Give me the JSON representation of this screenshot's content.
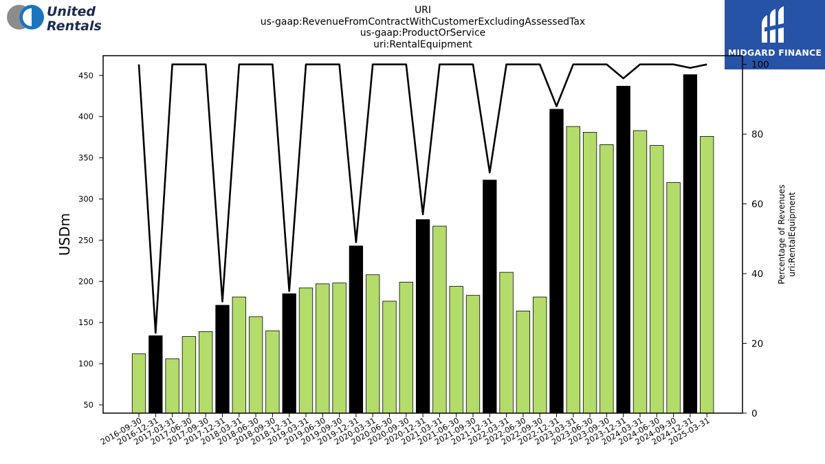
{
  "header": {
    "logo_left_line1": "United",
    "logo_left_line2": "Rentals",
    "logo_right_text": "MIDGARD FINANCE",
    "title_lines": [
      "URI",
      "us-gaap:RevenueFromContractWithCustomerExcludingAssessedTax",
      "us-gaap:ProductOrService",
      "uri:RentalEquipment"
    ]
  },
  "colors": {
    "bar_q4": "#000000",
    "bar_other": "#b3dc6b",
    "line": "#000000",
    "logo_blue": "#2653a6",
    "united_blue": "#1b75bc",
    "united_gray": "#8c8c8c",
    "united_navy": "#1c2a4f"
  },
  "chart_data": {
    "type": "bar",
    "categories": [
      "2016-09-30",
      "2016-12-31",
      "2017-03-31",
      "2017-06-30",
      "2017-09-30",
      "2017-12-31",
      "2018-03-31",
      "2018-06-30",
      "2018-09-30",
      "2018-12-31",
      "2019-03-31",
      "2019-06-30",
      "2019-09-30",
      "2019-12-31",
      "2020-03-31",
      "2020-06-30",
      "2020-09-30",
      "2020-12-31",
      "2021-03-31",
      "2021-06-30",
      "2021-09-30",
      "2021-12-31",
      "2022-03-31",
      "2022-06-30",
      "2022-09-30",
      "2022-12-31",
      "2023-03-31",
      "2023-06-30",
      "2023-09-30",
      "2023-12-31",
      "2024-03-31",
      "2024-06-30",
      "2024-09-30",
      "2024-12-31",
      "2025-03-31"
    ],
    "values": [
      112,
      134,
      106,
      133,
      139,
      171,
      181,
      157,
      140,
      185,
      192,
      197,
      198,
      243,
      208,
      176,
      199,
      275,
      267,
      194,
      183,
      323,
      211,
      164,
      181,
      409,
      388,
      381,
      366,
      437,
      383,
      365,
      320,
      451,
      376
    ],
    "line_series": {
      "axis": "right",
      "values": [
        100,
        23,
        100,
        100,
        100,
        32,
        100,
        100,
        100,
        35,
        100,
        100,
        100,
        49,
        100,
        100,
        100,
        57,
        100,
        100,
        100,
        69,
        100,
        100,
        100,
        88,
        100,
        100,
        100,
        96,
        100,
        100,
        100,
        99,
        100
      ]
    },
    "ylabel": "USDm",
    "ylim": [
      40,
      474
    ],
    "yticks": [
      50,
      100,
      150,
      200,
      250,
      300,
      350,
      400,
      450
    ],
    "y2label_lines": [
      "Percentage of Revenues",
      "uri:RentalEquipment"
    ],
    "y2lim": [
      0,
      102.5
    ],
    "y2ticks": [
      0,
      20,
      40,
      60,
      80,
      100
    ]
  }
}
